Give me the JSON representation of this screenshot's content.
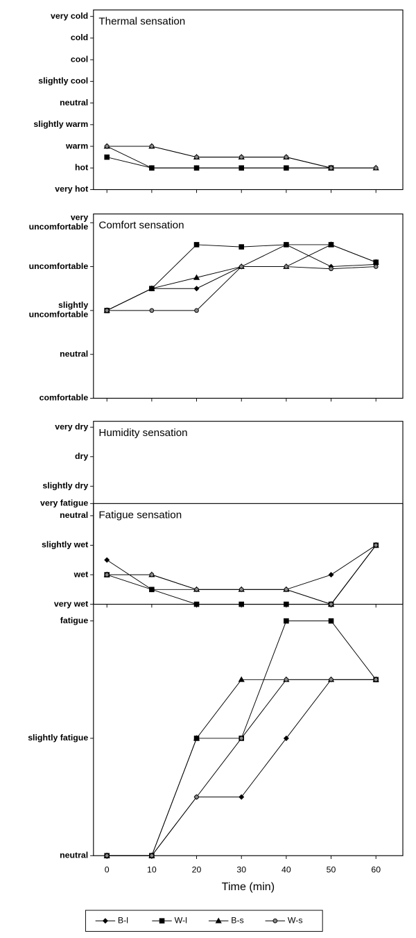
{
  "chart_data": [
    {
      "type": "line",
      "title": "Thermal sensation",
      "x": [
        0,
        10,
        20,
        30,
        40,
        50,
        60
      ],
      "xlim": [
        -3,
        66
      ],
      "ylim": [
        4,
        -4.3
      ],
      "yticks": [
        {
          "value": -4,
          "label": "very cold"
        },
        {
          "value": -3,
          "label": "cold"
        },
        {
          "value": -2,
          "label": "cool"
        },
        {
          "value": -1,
          "label": "slightly cool"
        },
        {
          "value": 0,
          "label": "neutral"
        },
        {
          "value": 1,
          "label": "slightly warm"
        },
        {
          "value": 2,
          "label": "warm"
        },
        {
          "value": 3,
          "label": "hot"
        },
        {
          "value": 4,
          "label": "very hot"
        }
      ],
      "series": [
        {
          "name": "B-l",
          "color": "#000000",
          "marker": "diamond",
          "values": [
            2,
            3,
            3,
            3,
            3,
            3,
            null
          ]
        },
        {
          "name": "W-l",
          "color": "#000000",
          "marker": "square",
          "values": [
            2.5,
            3,
            3,
            3,
            3,
            3,
            null
          ]
        },
        {
          "name": "B-s",
          "color": "#000000",
          "marker": "triangle",
          "values": [
            2,
            2,
            2.5,
            2.5,
            2.5,
            3,
            3
          ]
        },
        {
          "name": "W-s",
          "color": "#000000",
          "marker": "circle",
          "values": [
            2,
            2,
            2.5,
            2.5,
            2.5,
            3,
            3
          ]
        }
      ]
    },
    {
      "type": "line",
      "title": "Comfort sensation",
      "x": [
        0,
        10,
        20,
        30,
        40,
        50,
        60
      ],
      "xlim": [
        -3,
        66
      ],
      "ylim": [
        0,
        4.2
      ],
      "yticks": [
        {
          "value": 0,
          "label": "comfortable"
        },
        {
          "value": 1,
          "label": "neutral"
        },
        {
          "value": 2,
          "label": "slightly uncomfortable"
        },
        {
          "value": 3,
          "label": "uncomfortable"
        },
        {
          "value": 4,
          "label": "very uncomfortable"
        }
      ],
      "series": [
        {
          "name": "B-l",
          "color": "#000000",
          "marker": "diamond",
          "values": [
            2,
            2.5,
            2.5,
            3,
            3.5,
            3,
            3.05
          ]
        },
        {
          "name": "W-l",
          "color": "#000000",
          "marker": "square",
          "values": [
            2,
            2.5,
            3.5,
            3.45,
            3.5,
            3.5,
            3.1
          ]
        },
        {
          "name": "B-s",
          "color": "#000000",
          "marker": "triangle",
          "values": [
            2,
            2.5,
            2.75,
            3,
            3,
            3.5,
            3.1
          ]
        },
        {
          "name": "W-s",
          "color": "#000000",
          "marker": "circle",
          "values": [
            2,
            2,
            2,
            3,
            3,
            2.95,
            3
          ]
        }
      ]
    },
    {
      "type": "line",
      "title": "Humidity sensation",
      "x": [
        0,
        10,
        20,
        30,
        40,
        50,
        60
      ],
      "xlim": [
        -3,
        66
      ],
      "ylim": [
        0,
        6.2
      ],
      "yticks": [
        {
          "value": 0,
          "label": "very wet"
        },
        {
          "value": 1,
          "label": "wet"
        },
        {
          "value": 2,
          "label": "slightly wet"
        },
        {
          "value": 3,
          "label": "neutral"
        },
        {
          "value": 4,
          "label": "slightly dry"
        },
        {
          "value": 5,
          "label": "dry"
        },
        {
          "value": 6,
          "label": "very dry"
        }
      ],
      "series": [
        {
          "name": "B-l",
          "color": "#000000",
          "marker": "diamond",
          "values": [
            1.5,
            0.5,
            0.5,
            0.5,
            0.5,
            1,
            2
          ]
        },
        {
          "name": "W-l",
          "color": "#000000",
          "marker": "square",
          "values": [
            1,
            0.5,
            0,
            0,
            0,
            0,
            2
          ]
        },
        {
          "name": "B-s",
          "color": "#000000",
          "marker": "triangle",
          "values": [
            1,
            1,
            0.5,
            0.5,
            0.5,
            0,
            2
          ]
        },
        {
          "name": "W-s",
          "color": "#000000",
          "marker": "circle",
          "values": [
            1,
            1,
            0.5,
            0.5,
            0.5,
            0,
            2
          ]
        }
      ]
    },
    {
      "type": "line",
      "title": "Fatigue sensation",
      "x": [
        0,
        10,
        20,
        30,
        40,
        50,
        60
      ],
      "xlim": [
        -3,
        66
      ],
      "xticks": [
        0,
        10,
        20,
        30,
        40,
        50,
        60
      ],
      "xlabel": "Time (min)",
      "ylim": [
        0,
        3
      ],
      "yticks": [
        {
          "value": 0,
          "label": "neutral"
        },
        {
          "value": 1,
          "label": "slightly fatigue"
        },
        {
          "value": 2,
          "label": "fatigue"
        },
        {
          "value": 3,
          "label": "very fatigue"
        }
      ],
      "series": [
        {
          "name": "B-l",
          "color": "#000000",
          "marker": "diamond",
          "values": [
            0,
            0,
            0.5,
            0.5,
            1,
            1.5,
            1.5
          ]
        },
        {
          "name": "W-l",
          "color": "#000000",
          "marker": "square",
          "values": [
            0,
            0,
            1,
            1,
            2,
            2,
            1.5
          ]
        },
        {
          "name": "B-s",
          "color": "#000000",
          "marker": "triangle",
          "values": [
            0,
            0,
            1,
            1.5,
            1.5,
            1.5,
            1.5
          ]
        },
        {
          "name": "W-s",
          "color": "#000000",
          "marker": "circle",
          "values": [
            0,
            0,
            0.5,
            1,
            1.5,
            1.5,
            1.5
          ]
        }
      ]
    }
  ]
}
